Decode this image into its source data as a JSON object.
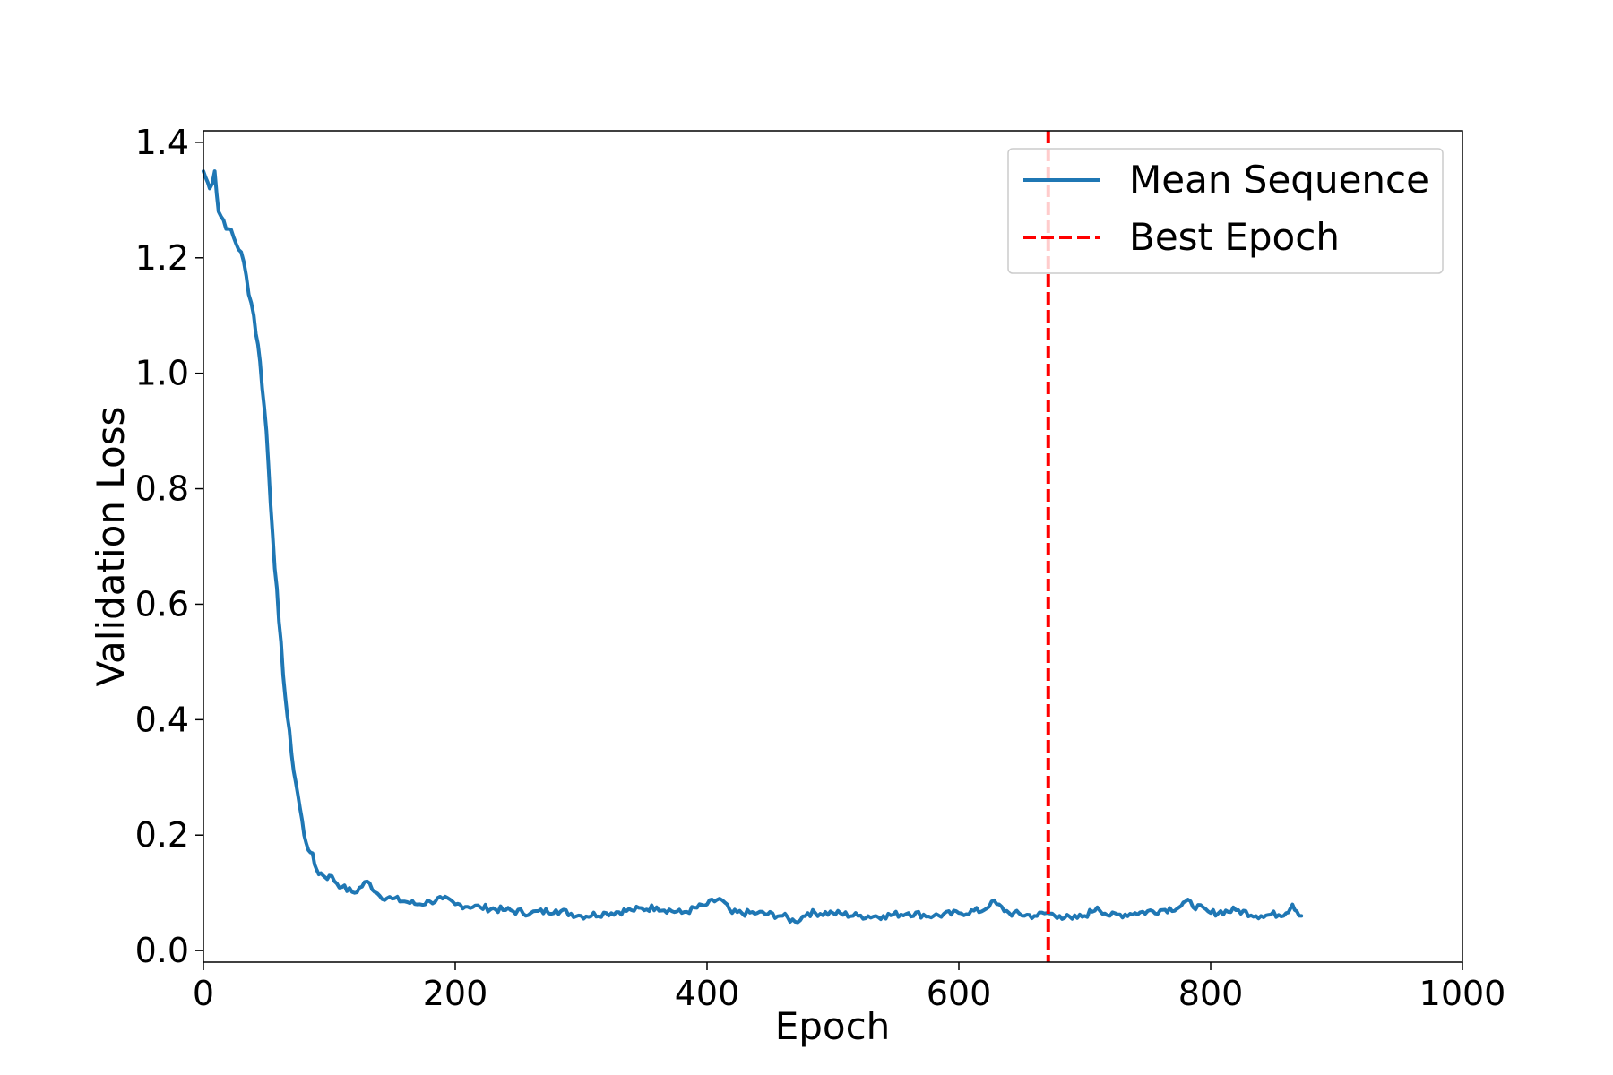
{
  "chart_data": {
    "type": "line",
    "title": "",
    "xlabel": "Epoch",
    "ylabel": "Validation Loss",
    "xlim": [
      0,
      1000
    ],
    "ylim": [
      -0.02,
      1.42
    ],
    "xticks": [
      "0",
      "200",
      "400",
      "600",
      "800",
      "1000"
    ],
    "yticks": [
      "0.0",
      "0.2",
      "0.4",
      "0.6",
      "0.8",
      "1.0",
      "1.2",
      "1.4"
    ],
    "grid": false,
    "legend_position": "top-right",
    "series": [
      {
        "name": "Mean Sequence",
        "color": "#1f77b4",
        "x": [
          0,
          5,
          9,
          12,
          20,
          30,
          40,
          45,
          50,
          55,
          60,
          65,
          70,
          75,
          80,
          85,
          90,
          95,
          100,
          110,
          120,
          130,
          140,
          150,
          160,
          170,
          180,
          190,
          200,
          220,
          240,
          260,
          280,
          300,
          320,
          340,
          360,
          380,
          400,
          410,
          420,
          440,
          460,
          470,
          480,
          500,
          520,
          540,
          560,
          580,
          600,
          620,
          626,
          640,
          660,
          670,
          680,
          690,
          700,
          710,
          720,
          740,
          760,
          775,
          780,
          800,
          820,
          840,
          860,
          865,
          872
        ],
        "y": [
          1.35,
          1.32,
          1.35,
          1.28,
          1.25,
          1.21,
          1.1,
          1.02,
          0.9,
          0.72,
          0.57,
          0.44,
          0.34,
          0.27,
          0.2,
          0.17,
          0.14,
          0.13,
          0.13,
          0.11,
          0.1,
          0.12,
          0.095,
          0.09,
          0.085,
          0.08,
          0.085,
          0.09,
          0.08,
          0.075,
          0.07,
          0.065,
          0.07,
          0.06,
          0.065,
          0.07,
          0.075,
          0.065,
          0.08,
          0.09,
          0.065,
          0.065,
          0.06,
          0.05,
          0.065,
          0.065,
          0.06,
          0.06,
          0.065,
          0.06,
          0.065,
          0.07,
          0.085,
          0.065,
          0.06,
          0.065,
          0.06,
          0.055,
          0.06,
          0.075,
          0.06,
          0.065,
          0.07,
          0.075,
          0.085,
          0.065,
          0.07,
          0.06,
          0.065,
          0.08,
          0.06
        ]
      }
    ],
    "annotations": [
      {
        "name": "Best Epoch",
        "type": "vline",
        "x": 671,
        "color": "#ff0000",
        "style": "dashed"
      }
    ]
  }
}
